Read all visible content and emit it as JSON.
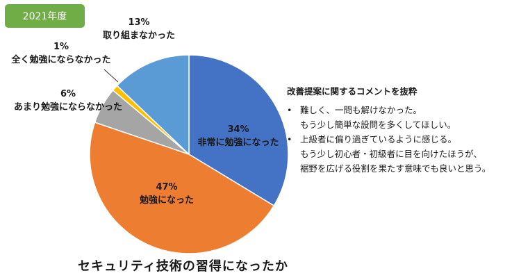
{
  "badge": {
    "label": "2021年度",
    "color": "#70ad47"
  },
  "chart_data": {
    "type": "pie",
    "title": "セキュリティ技術の習得になったか",
    "slices": [
      {
        "label": "非常に勉強になった",
        "value": 34,
        "percent_label": "34%",
        "color": "#4472c4"
      },
      {
        "label": "勉強になった",
        "value": 47,
        "percent_label": "47%",
        "color": "#ed7d31"
      },
      {
        "label": "あまり勉強にならなかった",
        "value": 6,
        "percent_label": "6%",
        "color": "#a5a5a5"
      },
      {
        "label": "全く勉強にならなかった",
        "value": 1,
        "percent_label": "1%",
        "color": "#ffc000"
      },
      {
        "label": "取り組まなかった",
        "value": 13,
        "percent_label": "13%",
        "color": "#5b9bd5"
      }
    ],
    "start": "12 o'clock",
    "direction": "clockwise"
  },
  "comments": {
    "title": "改善提案に関するコメントを抜粋",
    "items": [
      {
        "bullet": "•",
        "lines": [
          "難しく、一問も解けなかった。",
          "もう少し簡単な設問を多くしてほしい。"
        ]
      },
      {
        "bullet": "•",
        "lines": [
          "上級者に偏り過ぎているように感じる。",
          "もう少し初心者・初級者に目を向けたほうが、",
          "裾野を広げる役割を果たす意味でも良いと思う。"
        ]
      }
    ]
  }
}
